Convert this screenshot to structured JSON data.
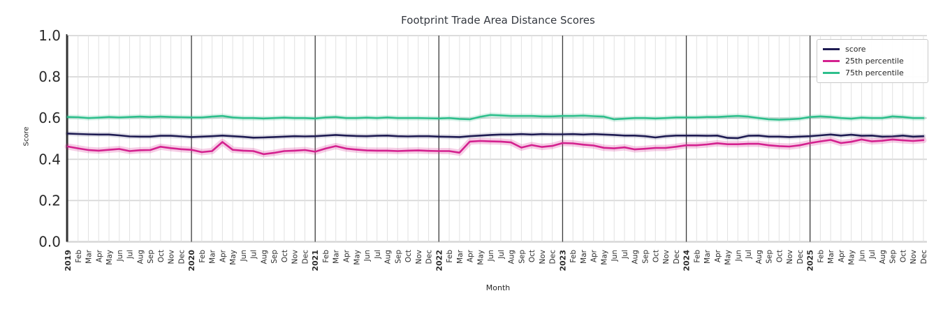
{
  "header": {
    "title": "Footprint Trade Area Distance Scores"
  },
  "axes": {
    "ylabel": "Score",
    "xlabel": "Month",
    "yticks": [
      "0.0",
      "0.2",
      "0.4",
      "0.6",
      "0.8",
      "1.0"
    ],
    "ylim": [
      0.0,
      1.0
    ]
  },
  "style": {
    "grid_month": "#e1e1e1",
    "grid_year": "#3a3a3a",
    "grid_horizontal": "#d7d7d7",
    "spine": "#262626",
    "tick_text": "#2b2b2b",
    "title_text": "#34383f"
  },
  "chart_data": {
    "type": "line",
    "title": "Footprint Trade Area Distance Scores",
    "xlabel": "Month",
    "ylabel": "Score",
    "ylim": [
      0.0,
      1.0
    ],
    "yticks": [
      0.0,
      0.2,
      0.4,
      0.6,
      0.8,
      1.0
    ],
    "grid": true,
    "legend_position": "upper right",
    "years": [
      2019,
      2020,
      2021,
      2022,
      2023,
      2024,
      2025
    ],
    "x": [
      "2019",
      "Feb",
      "Mar",
      "Apr",
      "May",
      "Jun",
      "Jul",
      "Aug",
      "Sep",
      "Oct",
      "Nov",
      "Dec",
      "2020",
      "Feb",
      "Mar",
      "Apr",
      "May",
      "Jun",
      "Jul",
      "Aug",
      "Sep",
      "Oct",
      "Nov",
      "Dec",
      "2021",
      "Feb",
      "Mar",
      "Apr",
      "May",
      "Jun",
      "Jul",
      "Aug",
      "Sep",
      "Oct",
      "Nov",
      "Dec",
      "2022",
      "Feb",
      "Mar",
      "Apr",
      "May",
      "Jun",
      "Jul",
      "Aug",
      "Sep",
      "Oct",
      "Nov",
      "Dec",
      "2023",
      "Feb",
      "Mar",
      "Apr",
      "May",
      "Jun",
      "Jul",
      "Aug",
      "Sep",
      "Oct",
      "Nov",
      "Dec",
      "2024",
      "Feb",
      "Mar",
      "Apr",
      "May",
      "Jun",
      "Jul",
      "Aug",
      "Sep",
      "Oct",
      "Nov",
      "Dec",
      "2025",
      "Feb",
      "Mar",
      "Apr",
      "May",
      "Jun",
      "Jul",
      "Aug",
      "Sep",
      "Oct",
      "Nov",
      "Dec"
    ],
    "series": [
      {
        "name": "score",
        "color": "#1e1b52",
        "band_halo": {
          "width": 7,
          "opacity": 0.13
        },
        "values": [
          0.525,
          0.523,
          0.521,
          0.52,
          0.52,
          0.516,
          0.511,
          0.51,
          0.51,
          0.514,
          0.514,
          0.511,
          0.508,
          0.51,
          0.512,
          0.515,
          0.512,
          0.509,
          0.505,
          0.506,
          0.508,
          0.51,
          0.512,
          0.511,
          0.512,
          0.515,
          0.518,
          0.515,
          0.513,
          0.512,
          0.514,
          0.515,
          0.512,
          0.511,
          0.512,
          0.512,
          0.51,
          0.509,
          0.508,
          0.512,
          0.515,
          0.518,
          0.52,
          0.52,
          0.522,
          0.52,
          0.522,
          0.521,
          0.521,
          0.522,
          0.52,
          0.522,
          0.52,
          0.518,
          0.515,
          0.515,
          0.512,
          0.506,
          0.512,
          0.515,
          0.515,
          0.515,
          0.514,
          0.515,
          0.504,
          0.503,
          0.514,
          0.515,
          0.51,
          0.51,
          0.508,
          0.51,
          0.512,
          0.516,
          0.52,
          0.515,
          0.519,
          0.514,
          0.515,
          0.51,
          0.511,
          0.515,
          0.51,
          0.512
        ]
      },
      {
        "name": "25th percentile",
        "color": "#d4218f",
        "band_halo": {
          "width": 9,
          "opacity": 0.22
        },
        "values": [
          0.462,
          0.453,
          0.445,
          0.442,
          0.446,
          0.45,
          0.44,
          0.444,
          0.445,
          0.461,
          0.454,
          0.449,
          0.446,
          0.435,
          0.44,
          0.484,
          0.446,
          0.442,
          0.44,
          0.425,
          0.431,
          0.44,
          0.442,
          0.445,
          0.437,
          0.452,
          0.464,
          0.452,
          0.447,
          0.443,
          0.442,
          0.442,
          0.44,
          0.442,
          0.443,
          0.441,
          0.44,
          0.44,
          0.432,
          0.486,
          0.489,
          0.487,
          0.486,
          0.482,
          0.457,
          0.469,
          0.46,
          0.465,
          0.479,
          0.477,
          0.471,
          0.467,
          0.456,
          0.453,
          0.458,
          0.448,
          0.451,
          0.455,
          0.455,
          0.461,
          0.468,
          0.468,
          0.472,
          0.478,
          0.473,
          0.473,
          0.475,
          0.475,
          0.468,
          0.464,
          0.462,
          0.468,
          0.479,
          0.487,
          0.494,
          0.479,
          0.485,
          0.496,
          0.487,
          0.49,
          0.496,
          0.492,
          0.489,
          0.493
        ]
      },
      {
        "name": "75th percentile",
        "color": "#2ebf8c",
        "band_halo": {
          "width": 7,
          "opacity": 0.18
        },
        "values": [
          0.605,
          0.604,
          0.6,
          0.602,
          0.605,
          0.603,
          0.605,
          0.607,
          0.605,
          0.607,
          0.605,
          0.604,
          0.603,
          0.603,
          0.607,
          0.61,
          0.603,
          0.6,
          0.6,
          0.598,
          0.6,
          0.602,
          0.6,
          0.6,
          0.598,
          0.603,
          0.605,
          0.6,
          0.6,
          0.602,
          0.6,
          0.603,
          0.6,
          0.6,
          0.6,
          0.599,
          0.598,
          0.6,
          0.596,
          0.594,
          0.606,
          0.615,
          0.613,
          0.61,
          0.61,
          0.61,
          0.608,
          0.608,
          0.61,
          0.61,
          0.612,
          0.609,
          0.607,
          0.594,
          0.597,
          0.6,
          0.6,
          0.598,
          0.6,
          0.603,
          0.603,
          0.603,
          0.605,
          0.605,
          0.608,
          0.61,
          0.607,
          0.6,
          0.594,
          0.592,
          0.594,
          0.597,
          0.605,
          0.608,
          0.605,
          0.6,
          0.597,
          0.602,
          0.6,
          0.6,
          0.608,
          0.605,
          0.6,
          0.6
        ]
      }
    ]
  }
}
